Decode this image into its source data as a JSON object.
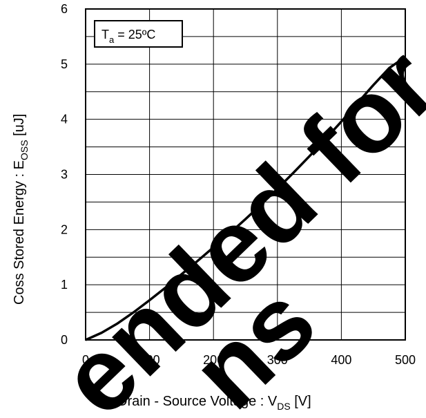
{
  "chart_data": {
    "type": "line",
    "title": "",
    "xlabel": {
      "main": "Drain - Source Voltage : V",
      "sub": "DS",
      "unit": " [V]"
    },
    "ylabel": {
      "main": "Coss Stored Energy : E",
      "sub": "OSS",
      "unit": " [uJ]"
    },
    "xlim": [
      0,
      500
    ],
    "ylim": [
      0,
      6
    ],
    "x_ticks": [
      0,
      100,
      200,
      300,
      400,
      500
    ],
    "y_ticks": [
      0,
      1,
      2,
      3,
      4,
      5,
      6
    ],
    "grid": true,
    "annotation": {
      "main": "T",
      "sub": "a",
      "rest": " = 25ºC"
    },
    "series": [
      {
        "x": [
          0,
          25,
          50,
          75,
          100,
          125,
          150,
          175,
          200,
          225,
          250,
          275,
          300,
          325,
          350,
          375,
          400,
          425,
          450,
          475,
          500
        ],
        "y": [
          0,
          0.13,
          0.3,
          0.5,
          0.72,
          0.95,
          1.19,
          1.43,
          1.68,
          1.93,
          2.19,
          2.46,
          2.74,
          3.03,
          3.33,
          3.64,
          3.96,
          4.29,
          4.62,
          4.93,
          5.13
        ]
      }
    ],
    "watermark": [
      "ended for",
      "ns"
    ]
  }
}
